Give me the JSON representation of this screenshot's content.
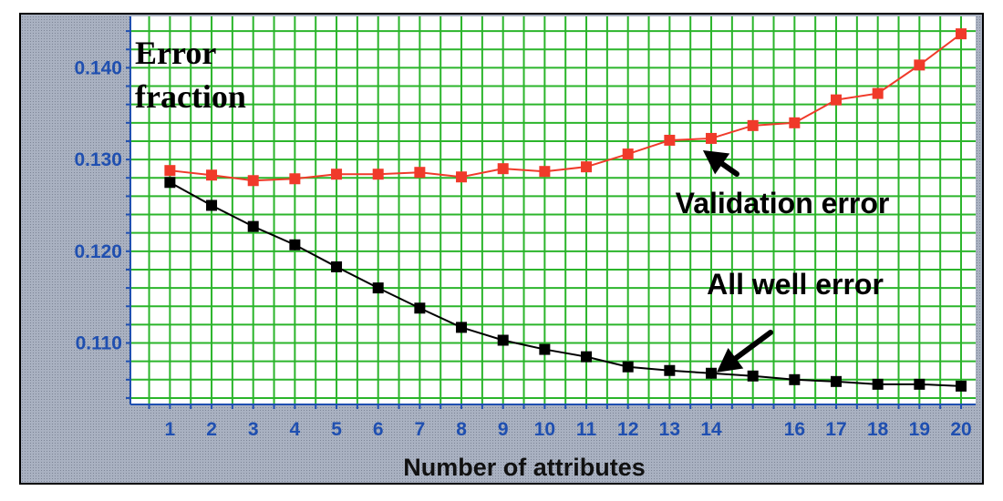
{
  "chart_data": {
    "type": "line",
    "title": "",
    "xlabel": "Number of attributes",
    "ylabel_lines": [
      "Error",
      "fraction"
    ],
    "x": [
      1,
      2,
      3,
      4,
      5,
      6,
      7,
      8,
      9,
      10,
      11,
      12,
      13,
      14,
      15,
      16,
      17,
      18,
      19,
      20
    ],
    "x_tick_labels": [
      "1",
      "2",
      "3",
      "4",
      "5",
      "6",
      "7",
      "8",
      "9",
      "10",
      "11",
      "12",
      "13",
      "14",
      "",
      "16",
      "17",
      "18",
      "19",
      "20"
    ],
    "y_ticks": [
      0.11,
      0.12,
      0.13,
      0.14
    ],
    "y_tick_labels": [
      "0.110",
      "0.120",
      "0.130",
      "0.140"
    ],
    "xlim": [
      0.05,
      20.35
    ],
    "ylim": [
      0.1033,
      0.1456
    ],
    "grid": true,
    "series": [
      {
        "key": "validation",
        "color": "#f03a2a",
        "values": [
          0.1288,
          0.1283,
          0.1277,
          0.1279,
          0.1284,
          0.1284,
          0.1286,
          0.1281,
          0.129,
          0.1287,
          0.1292,
          0.1306,
          0.1321,
          0.1323,
          0.1337,
          0.134,
          0.1365,
          0.1372,
          0.1403,
          0.1437
        ]
      },
      {
        "key": "all_well",
        "color": "#000000",
        "values": [
          0.1275,
          0.125,
          0.1227,
          0.1207,
          0.1183,
          0.116,
          0.1138,
          0.1117,
          0.1103,
          0.1093,
          0.1085,
          0.1074,
          0.107,
          0.1067,
          0.1064,
          0.106,
          0.1058,
          0.1055,
          0.1055,
          0.1053
        ]
      }
    ],
    "annotations": [
      {
        "text": "Validation error",
        "arrow_to": [
          13.8,
          0.1312
        ]
      },
      {
        "text": "All well error",
        "arrow_to": [
          14.0,
          0.1066
        ]
      }
    ],
    "colors": {
      "frame_bg": "#a8b0c0",
      "plot_bg": "#ffffff",
      "grid": "#2bb52b",
      "tick_text": "#1f4fb0",
      "axis": "#1f4fb0"
    }
  }
}
